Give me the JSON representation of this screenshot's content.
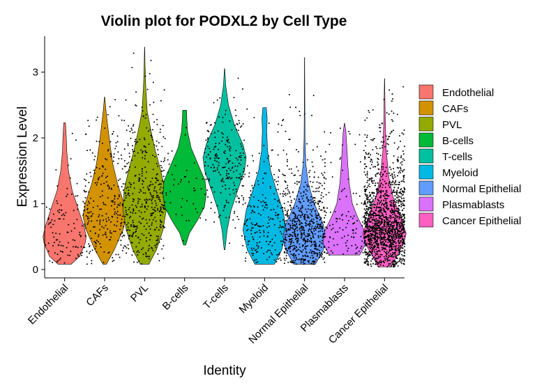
{
  "chart_data": {
    "type": "violin",
    "title": "Violin plot for PODXL2 by Cell Type",
    "xlabel": "Identity",
    "ylabel": "Expression Level",
    "ylim": [
      -0.1,
      3.55
    ],
    "yticks": [
      0,
      1,
      2,
      3
    ],
    "legend_position": "right",
    "grid": false,
    "categories": [
      "Endothelial",
      "CAFs",
      "PVL",
      "B-cells",
      "T-cells",
      "Myeloid",
      "Normal Epithelial",
      "Plasmablasts",
      "Cancer Epithelial"
    ],
    "series": [
      {
        "name": "Endothelial",
        "color": "#F8766D",
        "min": 0.08,
        "max": 2.23,
        "mode": 0.5,
        "n_points": 110,
        "density": [
          [
            0.08,
            0.3
          ],
          [
            0.2,
            0.7
          ],
          [
            0.4,
            0.95
          ],
          [
            0.5,
            1.0
          ],
          [
            0.65,
            0.9
          ],
          [
            0.85,
            0.7
          ],
          [
            1.0,
            0.55
          ],
          [
            1.2,
            0.35
          ],
          [
            1.5,
            0.18
          ],
          [
            1.8,
            0.1
          ],
          [
            2.0,
            0.08
          ],
          [
            2.23,
            0.04
          ]
        ]
      },
      {
        "name": "CAFs",
        "color": "#D39200",
        "min": 0.08,
        "max": 2.62,
        "mode": 0.8,
        "n_points": 260,
        "density": [
          [
            0.08,
            0.08
          ],
          [
            0.3,
            0.45
          ],
          [
            0.6,
            0.85
          ],
          [
            0.8,
            1.0
          ],
          [
            1.0,
            0.9
          ],
          [
            1.3,
            0.6
          ],
          [
            1.6,
            0.38
          ],
          [
            1.9,
            0.25
          ],
          [
            2.2,
            0.14
          ],
          [
            2.45,
            0.05
          ],
          [
            2.62,
            0.01
          ]
        ]
      },
      {
        "name": "PVL",
        "color": "#93AA00",
        "min": 0.08,
        "max": 3.38,
        "mode": 1.1,
        "n_points": 420,
        "density": [
          [
            0.08,
            0.2
          ],
          [
            0.3,
            0.55
          ],
          [
            0.6,
            0.85
          ],
          [
            0.9,
            1.0
          ],
          [
            1.2,
            0.95
          ],
          [
            1.5,
            0.75
          ],
          [
            1.8,
            0.5
          ],
          [
            2.1,
            0.3
          ],
          [
            2.4,
            0.12
          ],
          [
            2.8,
            0.05
          ],
          [
            3.1,
            0.02
          ],
          [
            3.38,
            0.005
          ]
        ]
      },
      {
        "name": "B-cells",
        "color": "#00BA38",
        "min": 0.37,
        "max": 2.42,
        "mode": 1.15,
        "n_points": 45,
        "density": [
          [
            0.37,
            0.05
          ],
          [
            0.55,
            0.22
          ],
          [
            0.75,
            0.6
          ],
          [
            0.95,
            0.92
          ],
          [
            1.15,
            1.0
          ],
          [
            1.35,
            0.95
          ],
          [
            1.6,
            0.62
          ],
          [
            1.85,
            0.3
          ],
          [
            2.1,
            0.14
          ],
          [
            2.3,
            0.1
          ],
          [
            2.42,
            0.09
          ]
        ]
      },
      {
        "name": "T-cells",
        "color": "#00C19F",
        "min": 0.3,
        "max": 3.05,
        "mode": 1.65,
        "n_points": 230,
        "density": [
          [
            0.3,
            0.02
          ],
          [
            0.6,
            0.12
          ],
          [
            0.9,
            0.3
          ],
          [
            1.2,
            0.6
          ],
          [
            1.5,
            0.92
          ],
          [
            1.7,
            1.0
          ],
          [
            1.9,
            0.85
          ],
          [
            2.2,
            0.45
          ],
          [
            2.5,
            0.18
          ],
          [
            2.8,
            0.05
          ],
          [
            3.05,
            0.01
          ]
        ]
      },
      {
        "name": "Myeloid",
        "color": "#00B9E3",
        "min": 0.08,
        "max": 2.46,
        "mode": 0.65,
        "n_points": 220,
        "density": [
          [
            0.08,
            0.45
          ],
          [
            0.3,
            0.8
          ],
          [
            0.6,
            1.0
          ],
          [
            0.9,
            0.85
          ],
          [
            1.2,
            0.55
          ],
          [
            1.5,
            0.28
          ],
          [
            1.8,
            0.14
          ],
          [
            2.1,
            0.1
          ],
          [
            2.3,
            0.12
          ],
          [
            2.46,
            0.08
          ]
        ]
      },
      {
        "name": "Normal Epithelial",
        "color": "#619CFF",
        "min": 0.08,
        "max": 3.22,
        "mode": 0.5,
        "n_points": 650,
        "density": [
          [
            0.08,
            0.5
          ],
          [
            0.3,
            0.88
          ],
          [
            0.5,
            1.0
          ],
          [
            0.7,
            0.85
          ],
          [
            1.0,
            0.45
          ],
          [
            1.3,
            0.18
          ],
          [
            1.6,
            0.06
          ],
          [
            2.0,
            0.02
          ],
          [
            2.6,
            0.01
          ],
          [
            3.22,
            0.005
          ]
        ]
      },
      {
        "name": "Plasmablasts",
        "color": "#DB72FB",
        "min": 0.22,
        "max": 2.22,
        "mode": 0.45,
        "n_points": 130,
        "density": [
          [
            0.22,
            0.7
          ],
          [
            0.4,
            1.0
          ],
          [
            0.6,
            0.9
          ],
          [
            0.8,
            0.6
          ],
          [
            1.0,
            0.36
          ],
          [
            1.3,
            0.22
          ],
          [
            1.6,
            0.15
          ],
          [
            1.9,
            0.1
          ],
          [
            2.1,
            0.06
          ],
          [
            2.22,
            0.01
          ]
        ]
      },
      {
        "name": "Cancer Epithelial",
        "color": "#FF61C3",
        "min": 0.04,
        "max": 2.9,
        "mode": 0.55,
        "n_points": 4200,
        "density": [
          [
            0.04,
            0.3
          ],
          [
            0.2,
            0.55
          ],
          [
            0.4,
            0.9
          ],
          [
            0.55,
            1.0
          ],
          [
            0.8,
            0.75
          ],
          [
            1.1,
            0.4
          ],
          [
            1.4,
            0.2
          ],
          [
            1.8,
            0.08
          ],
          [
            2.3,
            0.03
          ],
          [
            2.9,
            0.005
          ]
        ]
      }
    ]
  }
}
